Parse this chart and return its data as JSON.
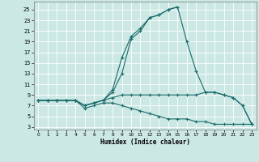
{
  "title": "",
  "xlabel": "Humidex (Indice chaleur)",
  "bg_color": "#cce8e4",
  "grid_color": "#ffffff",
  "line_color": "#1a6b6b",
  "xlim": [
    -0.5,
    23.5
  ],
  "ylim": [
    2.5,
    26.5
  ],
  "xticks": [
    0,
    1,
    2,
    3,
    4,
    5,
    6,
    7,
    8,
    9,
    10,
    11,
    12,
    13,
    14,
    15,
    16,
    17,
    18,
    19,
    20,
    21,
    22,
    23
  ],
  "yticks": [
    3,
    5,
    7,
    9,
    11,
    13,
    15,
    17,
    19,
    21,
    23,
    25
  ],
  "series": [
    {
      "x": [
        0,
        1,
        2,
        3,
        4,
        5,
        6,
        7,
        8,
        9,
        10,
        11,
        12,
        13,
        14,
        15,
        16,
        17,
        18,
        19,
        20,
        21,
        22,
        23
      ],
      "y": [
        8,
        8,
        8,
        8,
        8,
        7,
        7.5,
        8,
        9.5,
        13,
        19.5,
        21,
        23.5,
        24,
        25,
        25.5,
        19,
        13.5,
        9.5,
        9.5,
        9,
        8.5,
        7,
        3.5
      ]
    },
    {
      "x": [
        0,
        1,
        2,
        3,
        4,
        5,
        6,
        7,
        8,
        9,
        10,
        11,
        12,
        13,
        14,
        15,
        16,
        17,
        18,
        19,
        20,
        21,
        22,
        23
      ],
      "y": [
        8,
        8,
        8,
        8,
        8,
        7,
        7.5,
        8,
        8.5,
        9,
        9,
        9,
        9,
        9,
        9,
        9,
        9,
        9,
        9.5,
        9.5,
        9,
        8.5,
        7,
        3.5
      ]
    },
    {
      "x": [
        0,
        1,
        2,
        3,
        4,
        5,
        6,
        7,
        8,
        9,
        10,
        11,
        12,
        13,
        14,
        15,
        16,
        17,
        18,
        19,
        20,
        21,
        22,
        23
      ],
      "y": [
        8,
        8,
        8,
        8,
        8,
        6.5,
        7,
        7.5,
        7.5,
        7,
        6.5,
        6,
        5.5,
        5,
        4.5,
        4.5,
        4.5,
        4,
        4,
        3.5,
        3.5,
        3.5,
        3.5,
        3.5
      ]
    },
    {
      "x": [
        0,
        1,
        2,
        3,
        4,
        5,
        6,
        7,
        8,
        9,
        10,
        11,
        12,
        13,
        14,
        15
      ],
      "y": [
        8,
        8,
        8,
        8,
        8,
        7,
        7.5,
        8,
        10,
        16,
        20,
        21.5,
        23.5,
        24,
        25,
        25.5
      ]
    }
  ]
}
